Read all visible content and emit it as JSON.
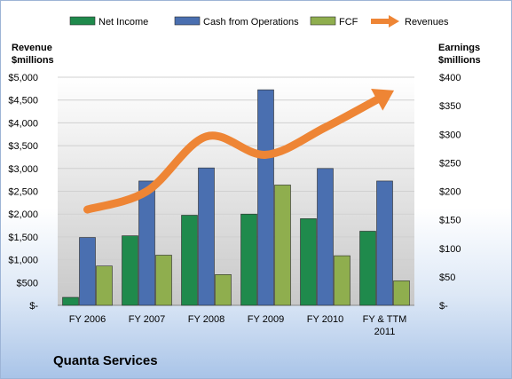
{
  "company": "Quanta Services",
  "chart_data": {
    "type": "bar",
    "categories": [
      "FY 2006",
      "FY 2007",
      "FY 2008",
      "FY 2009",
      "FY 2010",
      "FY & TTM 2011"
    ],
    "series": [
      {
        "name": "Net Income",
        "axis": "right",
        "color": "#1f8a4c",
        "values": [
          14,
          122,
          158,
          160,
          152,
          130
        ]
      },
      {
        "name": "Cash from Operations",
        "axis": "right",
        "color": "#4a6fb0",
        "values": [
          119,
          218,
          241,
          378,
          240,
          218
        ]
      },
      {
        "name": "FCF",
        "axis": "right",
        "color": "#8fae4e",
        "values": [
          69,
          88,
          54,
          211,
          87,
          43
        ]
      },
      {
        "name": "Revenues",
        "axis": "left",
        "type": "line",
        "color": "#ee8535",
        "values": [
          2100,
          2500,
          3700,
          3300,
          3900,
          4600
        ]
      }
    ],
    "left_axis": {
      "label_line1": "Revenue",
      "label_line2": "$millions",
      "range": [
        0,
        5000
      ],
      "ticks": [
        "$-",
        "$500",
        "$1,000",
        "$1,500",
        "$2,000",
        "$2,500",
        "$3,000",
        "$3,500",
        "$4,000",
        "$4,500",
        "$5,000"
      ]
    },
    "right_axis": {
      "label_line1": "Earnings",
      "label_line2": "$millions",
      "range": [
        0,
        400
      ],
      "ticks": [
        "$-",
        "$50",
        "$100",
        "$150",
        "$200",
        "$250",
        "$300",
        "$350",
        "$400"
      ]
    },
    "legend_position": "top",
    "grid": true
  }
}
